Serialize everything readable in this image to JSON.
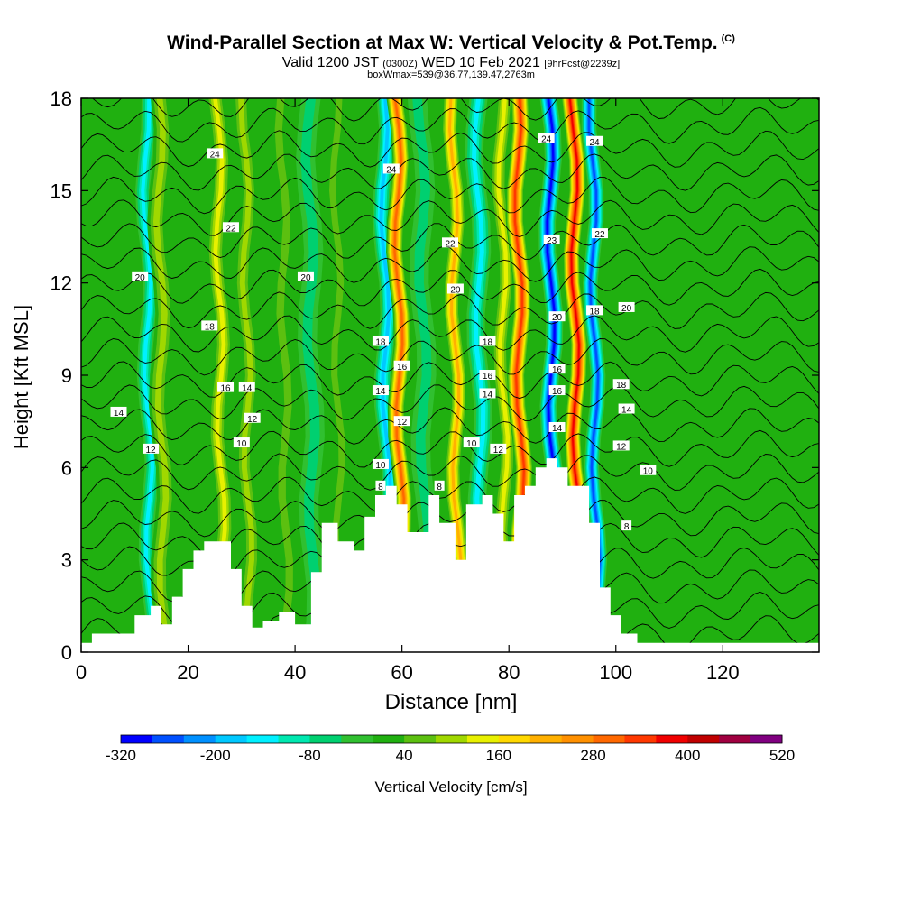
{
  "header": {
    "title": "Wind-Parallel Section at Max W: Vertical Velocity & Pot.Temp.",
    "title_mark": "(C)",
    "valid_a": "Valid 1200 JST",
    "valid_b": "(0300Z)",
    "valid_c": "WED 10 Feb 2021",
    "valid_d": "[9hrFcst@2239z]",
    "boxline": "boxWmax=539@36.77,139.47,2763m"
  },
  "chart_data": {
    "type": "heatmap",
    "xlabel": "Distance [nm]",
    "ylabel": "Height [Kft MSL]",
    "xlim": [
      0,
      138
    ],
    "ylim": [
      0,
      18
    ],
    "xticks": [
      0,
      20,
      40,
      60,
      80,
      100,
      120
    ],
    "yticks": [
      0,
      3,
      6,
      9,
      12,
      15,
      18
    ],
    "background_w_cms": 0,
    "w_bands": [
      {
        "x": 3,
        "w": 0,
        "width": 2.5
      },
      {
        "x": 12.5,
        "w": -160,
        "width": 1.4
      },
      {
        "x": 15,
        "w": 120,
        "width": 1.7
      },
      {
        "x": 26,
        "w": 160,
        "width": 1.6
      },
      {
        "x": 31,
        "w": 120,
        "width": 1.5
      },
      {
        "x": 38,
        "w": 80,
        "width": 1.4
      },
      {
        "x": 43,
        "w": -80,
        "width": 1.8
      },
      {
        "x": 48,
        "w": 80,
        "width": 1.2
      },
      {
        "x": 57,
        "w": -200,
        "width": 1.6
      },
      {
        "x": 59.5,
        "w": 320,
        "width": 1.6
      },
      {
        "x": 64,
        "w": -80,
        "width": 1.8
      },
      {
        "x": 70,
        "w": 240,
        "width": 1.5
      },
      {
        "x": 74.5,
        "w": -160,
        "width": 1.7
      },
      {
        "x": 79,
        "w": 160,
        "width": 1.5
      },
      {
        "x": 82,
        "w": 360,
        "width": 1.7
      },
      {
        "x": 88,
        "w": -320,
        "width": 1.6
      },
      {
        "x": 92.5,
        "w": 400,
        "width": 1.6
      },
      {
        "x": 96,
        "w": -280,
        "width": 1.4
      },
      {
        "x": 112,
        "w": 40,
        "width": 9
      }
    ],
    "terrain": {
      "x": [
        0,
        2,
        6,
        10,
        13,
        15,
        17,
        19,
        21,
        23,
        26,
        28,
        30,
        32,
        34,
        37,
        40,
        43,
        45,
        48,
        51,
        53,
        55,
        57,
        59,
        61,
        63,
        65,
        67,
        70,
        72,
        75,
        77,
        79,
        81,
        83,
        85,
        87,
        89,
        91,
        93,
        95,
        97,
        99,
        101,
        104,
        107,
        110,
        114,
        118,
        122,
        126,
        130,
        134,
        138
      ],
      "height_kft": [
        0.3,
        0.6,
        0.6,
        1.2,
        1.5,
        0.9,
        1.8,
        2.7,
        3.3,
        3.6,
        3.6,
        2.7,
        1.5,
        0.8,
        1.0,
        1.3,
        0.9,
        2.6,
        4.2,
        3.6,
        3.3,
        4.4,
        5.1,
        5.4,
        4.8,
        3.9,
        3.9,
        5.1,
        4.2,
        3.0,
        4.8,
        5.1,
        4.5,
        3.6,
        5.1,
        5.4,
        6.0,
        6.3,
        6.0,
        5.4,
        5.4,
        4.2,
        2.1,
        1.2,
        0.6,
        0.3,
        0.3,
        0.3,
        0.3,
        0.3,
        0.3,
        0.3,
        0.3,
        0.3,
        0.3
      ]
    },
    "theta_labels": [
      {
        "x": 7,
        "y": 7.8,
        "text": "14"
      },
      {
        "x": 13,
        "y": 6.6,
        "text": "12"
      },
      {
        "x": 11,
        "y": 12.2,
        "text": "20"
      },
      {
        "x": 25,
        "y": 16.2,
        "text": "24"
      },
      {
        "x": 28,
        "y": 13.8,
        "text": "22"
      },
      {
        "x": 24,
        "y": 10.6,
        "text": "18"
      },
      {
        "x": 27,
        "y": 8.6,
        "text": "16"
      },
      {
        "x": 31,
        "y": 8.6,
        "text": "14"
      },
      {
        "x": 32,
        "y": 7.6,
        "text": "12"
      },
      {
        "x": 30,
        "y": 6.8,
        "text": "10"
      },
      {
        "x": 42,
        "y": 12.2,
        "text": "20"
      },
      {
        "x": 58,
        "y": 15.7,
        "text": "24"
      },
      {
        "x": 56,
        "y": 10.1,
        "text": "18"
      },
      {
        "x": 60,
        "y": 9.3,
        "text": "16"
      },
      {
        "x": 56,
        "y": 8.5,
        "text": "14"
      },
      {
        "x": 60,
        "y": 7.5,
        "text": "12"
      },
      {
        "x": 56,
        "y": 6.1,
        "text": "10"
      },
      {
        "x": 56,
        "y": 5.4,
        "text": "8"
      },
      {
        "x": 69,
        "y": 13.3,
        "text": "22"
      },
      {
        "x": 70,
        "y": 11.8,
        "text": "20"
      },
      {
        "x": 76,
        "y": 10.1,
        "text": "18"
      },
      {
        "x": 76,
        "y": 9.0,
        "text": "16"
      },
      {
        "x": 76,
        "y": 8.4,
        "text": "14"
      },
      {
        "x": 78,
        "y": 6.6,
        "text": "12"
      },
      {
        "x": 73,
        "y": 6.8,
        "text": "10"
      },
      {
        "x": 67,
        "y": 5.4,
        "text": "8"
      },
      {
        "x": 87,
        "y": 16.7,
        "text": "24"
      },
      {
        "x": 88,
        "y": 13.4,
        "text": "23"
      },
      {
        "x": 89,
        "y": 10.9,
        "text": "20"
      },
      {
        "x": 89,
        "y": 9.2,
        "text": "16"
      },
      {
        "x": 89,
        "y": 8.5,
        "text": "16"
      },
      {
        "x": 89,
        "y": 7.3,
        "text": "14"
      },
      {
        "x": 96,
        "y": 16.6,
        "text": "24"
      },
      {
        "x": 97,
        "y": 13.6,
        "text": "22"
      },
      {
        "x": 96,
        "y": 11.1,
        "text": "18"
      },
      {
        "x": 102,
        "y": 11.2,
        "text": "20"
      },
      {
        "x": 101,
        "y": 8.7,
        "text": "18"
      },
      {
        "x": 102,
        "y": 7.9,
        "text": "14"
      },
      {
        "x": 101,
        "y": 6.7,
        "text": "12"
      },
      {
        "x": 106,
        "y": 5.9,
        "text": "10"
      },
      {
        "x": 102,
        "y": 4.1,
        "text": "8"
      }
    ],
    "colorbar": {
      "label": "Vertical Velocity [cm/s]",
      "tick_labels": [
        "-320",
        "-200",
        "-80",
        "40",
        "160",
        "280",
        "400",
        "520"
      ],
      "tick_values": [
        -320,
        -200,
        -80,
        40,
        160,
        280,
        400,
        520
      ],
      "levels": [
        -320,
        -280,
        -240,
        -200,
        -160,
        -120,
        -80,
        -40,
        0,
        40,
        80,
        120,
        160,
        200,
        240,
        280,
        320,
        360,
        400,
        440,
        480,
        520
      ],
      "colors": [
        "#0000ff",
        "#0050ff",
        "#0090ff",
        "#00c8ff",
        "#00f0ff",
        "#00e8b0",
        "#00d070",
        "#30c030",
        "#20b010",
        "#5cc010",
        "#a0d800",
        "#e8f000",
        "#ffd800",
        "#ffb000",
        "#ff9000",
        "#ff6800",
        "#ff3800",
        "#f00000",
        "#c00000",
        "#a00040",
        "#800080"
      ]
    }
  }
}
